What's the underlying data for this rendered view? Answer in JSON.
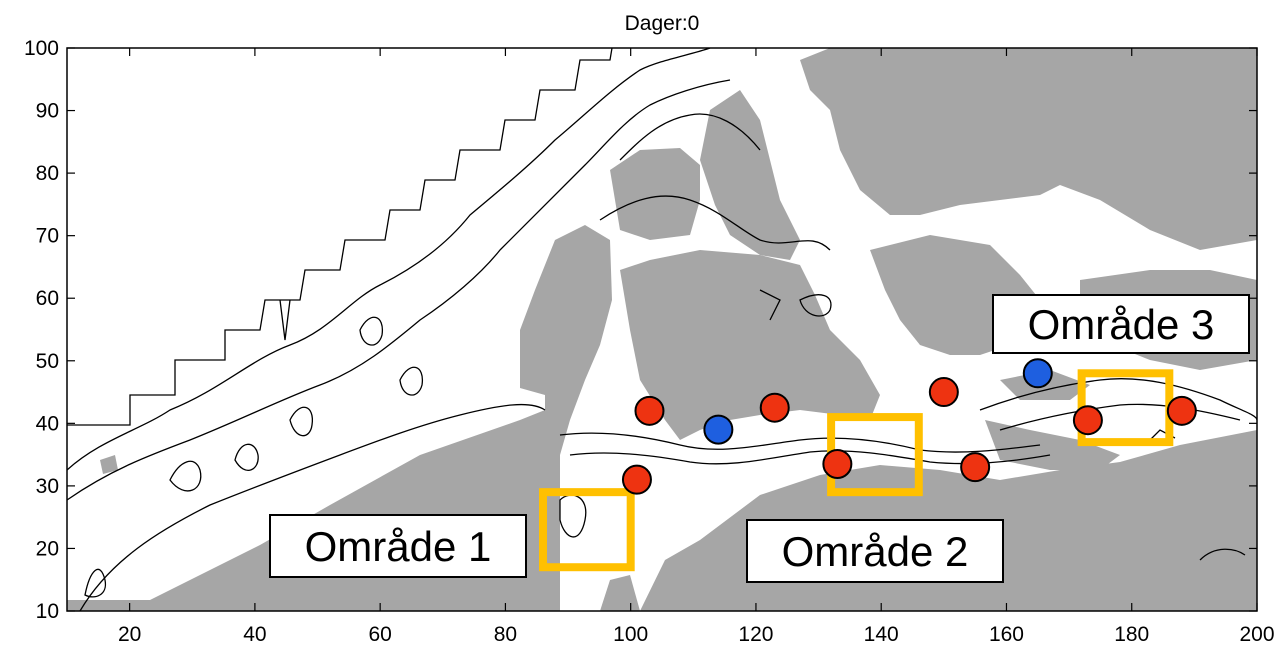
{
  "title": "Dager:0",
  "colors": {
    "land": "#a6a6a6",
    "water": "#ffffff",
    "contour": "#000000",
    "station_red": "#ee3311",
    "station_blue": "#1e5fe0",
    "region_box": "#ffc000"
  },
  "axes": {
    "xlim": [
      10,
      200
    ],
    "ylim": [
      10,
      100
    ],
    "x_ticks": [
      "20",
      "40",
      "60",
      "80",
      "100",
      "120",
      "140",
      "160",
      "180",
      "200"
    ],
    "y_ticks": [
      "10",
      "20",
      "30",
      "40",
      "50",
      "60",
      "70",
      "80",
      "90",
      "100"
    ]
  },
  "regions": [
    {
      "label": "Område 1",
      "x_range": [
        86,
        100
      ],
      "y_range": [
        17,
        29
      ]
    },
    {
      "label": "Område 2",
      "x_range": [
        132,
        146
      ],
      "y_range": [
        29,
        41
      ]
    },
    {
      "label": "Område 3",
      "x_range": [
        172,
        186
      ],
      "y_range": [
        37,
        48
      ]
    }
  ],
  "stations": [
    {
      "type": "red",
      "x": 103,
      "y": 42
    },
    {
      "type": "red",
      "x": 101,
      "y": 31
    },
    {
      "type": "blue",
      "x": 114,
      "y": 39
    },
    {
      "type": "red",
      "x": 123,
      "y": 42.5
    },
    {
      "type": "red",
      "x": 133,
      "y": 33.5
    },
    {
      "type": "red",
      "x": 150,
      "y": 45
    },
    {
      "type": "red",
      "x": 155,
      "y": 33
    },
    {
      "type": "blue",
      "x": 165,
      "y": 48
    },
    {
      "type": "red",
      "x": 173,
      "y": 40.5
    },
    {
      "type": "red",
      "x": 188,
      "y": 42
    }
  ]
}
